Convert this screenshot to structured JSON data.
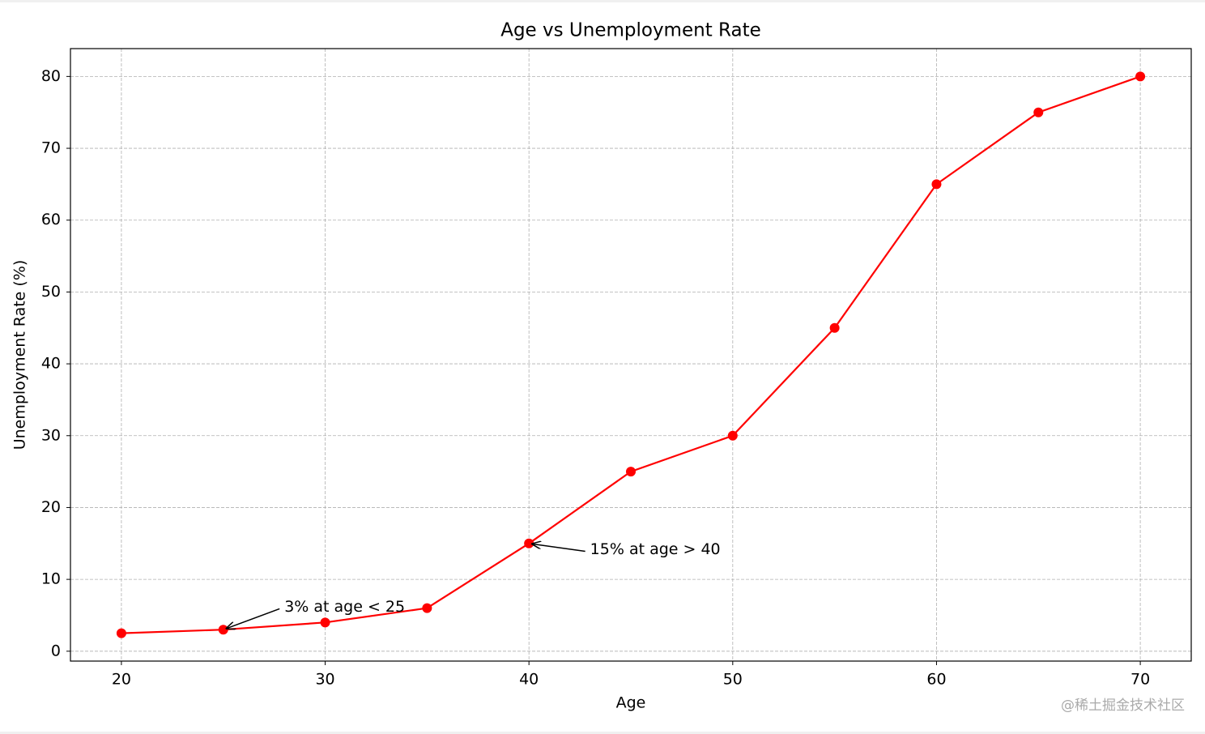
{
  "chart_data": {
    "type": "line",
    "title": "Age vs Unemployment Rate",
    "x_label": "Age",
    "y_label": "Unemployment Rate (%)",
    "x": [
      20,
      25,
      30,
      35,
      40,
      45,
      50,
      55,
      60,
      65,
      70
    ],
    "series": [
      {
        "name": "Unemployment Rate",
        "color": "#ff0000",
        "values": [
          2.5,
          3,
          4,
          6,
          15,
          25,
          30,
          45,
          65,
          75,
          80
        ]
      }
    ],
    "xlim": [
      17.5,
      72.5
    ],
    "ylim": [
      -1.375,
      83.875
    ],
    "xticks": [
      20,
      30,
      40,
      50,
      60,
      70
    ],
    "yticks": [
      0,
      10,
      20,
      30,
      40,
      50,
      60,
      70,
      80
    ],
    "grid": true,
    "annotations": [
      {
        "text": "3% at age < 25",
        "xy": [
          25,
          3
        ],
        "xytext": [
          28,
          5
        ]
      },
      {
        "text": "15% at age > 40",
        "xy": [
          40,
          15
        ],
        "xytext": [
          43,
          13
        ]
      }
    ],
    "watermark": "@稀土掘金技术社区"
  }
}
